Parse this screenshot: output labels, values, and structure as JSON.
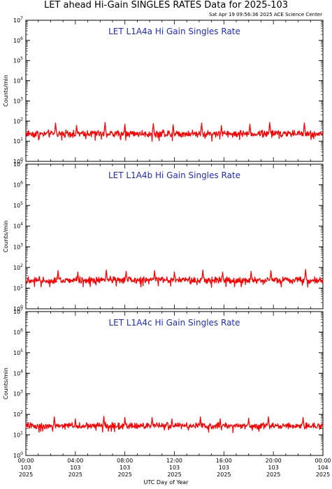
{
  "header": {
    "title": "LET ahead Hi-Gain SINGLES RATES Data for 2025-103",
    "timestamp": "Sat Apr 19 09:56:36 2025 ACE Science Center"
  },
  "colors": {
    "series": "#ff0000",
    "panel_title": "#1f2bc8",
    "axes": "#000000"
  },
  "chart_data": [
    {
      "type": "line",
      "title": "LET L1A4a Hi Gain Singles Rate",
      "ylabel": "Counts/min",
      "xlabel": "UTC Day of Year",
      "yscale": "log",
      "ylim": [
        1,
        10000000
      ],
      "xlim": [
        0,
        24
      ],
      "x_unit": "hours UTC",
      "typical_range": [
        14,
        40
      ],
      "spike_times": [
        2.4,
        4.1,
        6.4,
        8.0,
        10.3,
        11.9,
        14.2,
        15.8,
        18.1,
        19.7,
        22.5
      ],
      "spike_values": [
        80,
        60,
        85,
        70,
        75,
        65,
        80,
        60,
        70,
        85,
        80
      ],
      "legend": "none",
      "grid": false
    },
    {
      "type": "line",
      "title": "LET L1A4b Hi Gain Singles Rate",
      "ylabel": "Counts/min",
      "xlabel": "UTC Day of Year",
      "yscale": "log",
      "ylim": [
        1,
        10000000
      ],
      "xlim": [
        0,
        24
      ],
      "x_unit": "hours UTC",
      "typical_range": [
        15,
        40
      ],
      "spike_times": [
        2.6,
        4.2,
        6.5,
        8.1,
        10.4,
        12.0,
        14.3,
        15.9,
        18.2,
        19.8,
        22.6
      ],
      "spike_values": [
        70,
        60,
        75,
        65,
        70,
        60,
        75,
        60,
        65,
        70,
        80
      ],
      "legend": "none",
      "grid": false
    },
    {
      "type": "line",
      "title": "LET L1A4c Hi Gain Singles Rate",
      "ylabel": "Counts/min",
      "xlabel": "UTC Day of Year",
      "yscale": "log",
      "ylim": [
        1,
        10000000
      ],
      "xlim": [
        0,
        24
      ],
      "x_unit": "hours UTC",
      "typical_range": [
        18,
        42
      ],
      "spike_times": [
        2.3,
        4.0,
        6.3,
        8.0,
        10.2,
        11.8,
        14.1,
        15.7,
        18.0,
        19.6,
        22.4
      ],
      "spike_values": [
        75,
        60,
        80,
        70,
        70,
        60,
        75,
        60,
        65,
        75,
        70
      ],
      "legend": "none",
      "grid": false
    }
  ],
  "x_ticks": [
    {
      "time": "00:00",
      "day": "103",
      "year": "2025"
    },
    {
      "time": "04:00",
      "day": "103",
      "year": "2025"
    },
    {
      "time": "08:00",
      "day": "103",
      "year": "2025"
    },
    {
      "time": "12:00",
      "day": "103",
      "year": "2025"
    },
    {
      "time": "16:00",
      "day": "103",
      "year": "2025"
    },
    {
      "time": "20:00",
      "day": "103",
      "year": "2025"
    },
    {
      "time": "00:00",
      "day": "104",
      "year": "2025"
    }
  ]
}
